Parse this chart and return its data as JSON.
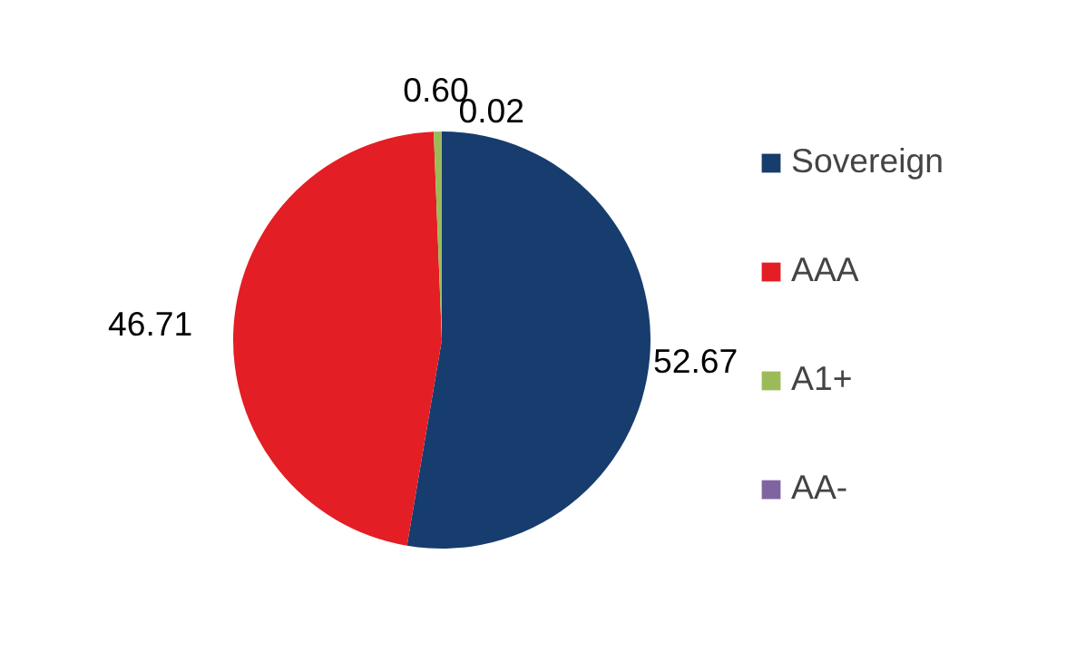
{
  "chart_data": {
    "type": "pie",
    "categories": [
      "Sovereign",
      "AAA",
      "A1+",
      "AA-"
    ],
    "values": [
      52.67,
      46.71,
      0.6,
      0.02
    ],
    "colors": [
      "#173c6e",
      "#e31e24",
      "#9bbb59",
      "#8064a2"
    ],
    "value_labels": [
      "52.67",
      "46.71",
      "0.60",
      "0.02"
    ],
    "legend": "right"
  }
}
